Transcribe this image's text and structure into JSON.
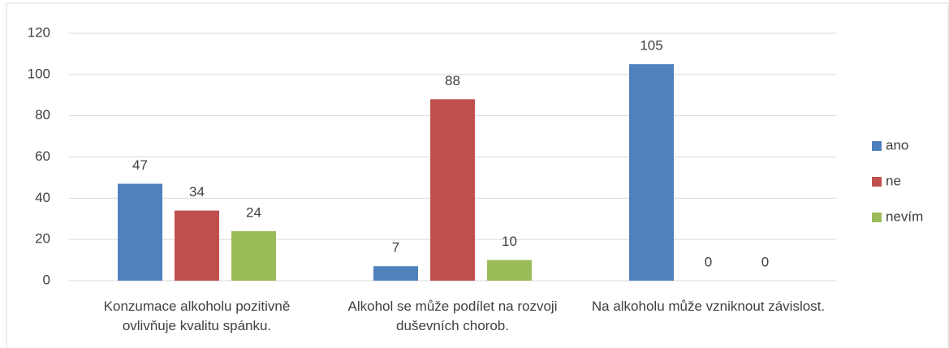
{
  "chart_data": {
    "type": "bar",
    "categories": [
      "Konzumace alkoholu pozitivně ovlivňuje kvalitu spánku.",
      "Alkohol se může podílet na rozvoji duševních chorob.",
      "Na alkoholu může vzniknout závislost."
    ],
    "series": [
      {
        "name": "ano",
        "color": "#4f81bd",
        "values": [
          47,
          7,
          105
        ]
      },
      {
        "name": "ne",
        "color": "#c0504d",
        "values": [
          34,
          88,
          0
        ]
      },
      {
        "name": "nevím",
        "color": "#9bbb59",
        "values": [
          24,
          10,
          0
        ]
      }
    ],
    "ylim": [
      0,
      120
    ],
    "yticks": [
      0,
      20,
      40,
      60,
      80,
      100,
      120
    ],
    "grid": true,
    "legend": "right"
  }
}
